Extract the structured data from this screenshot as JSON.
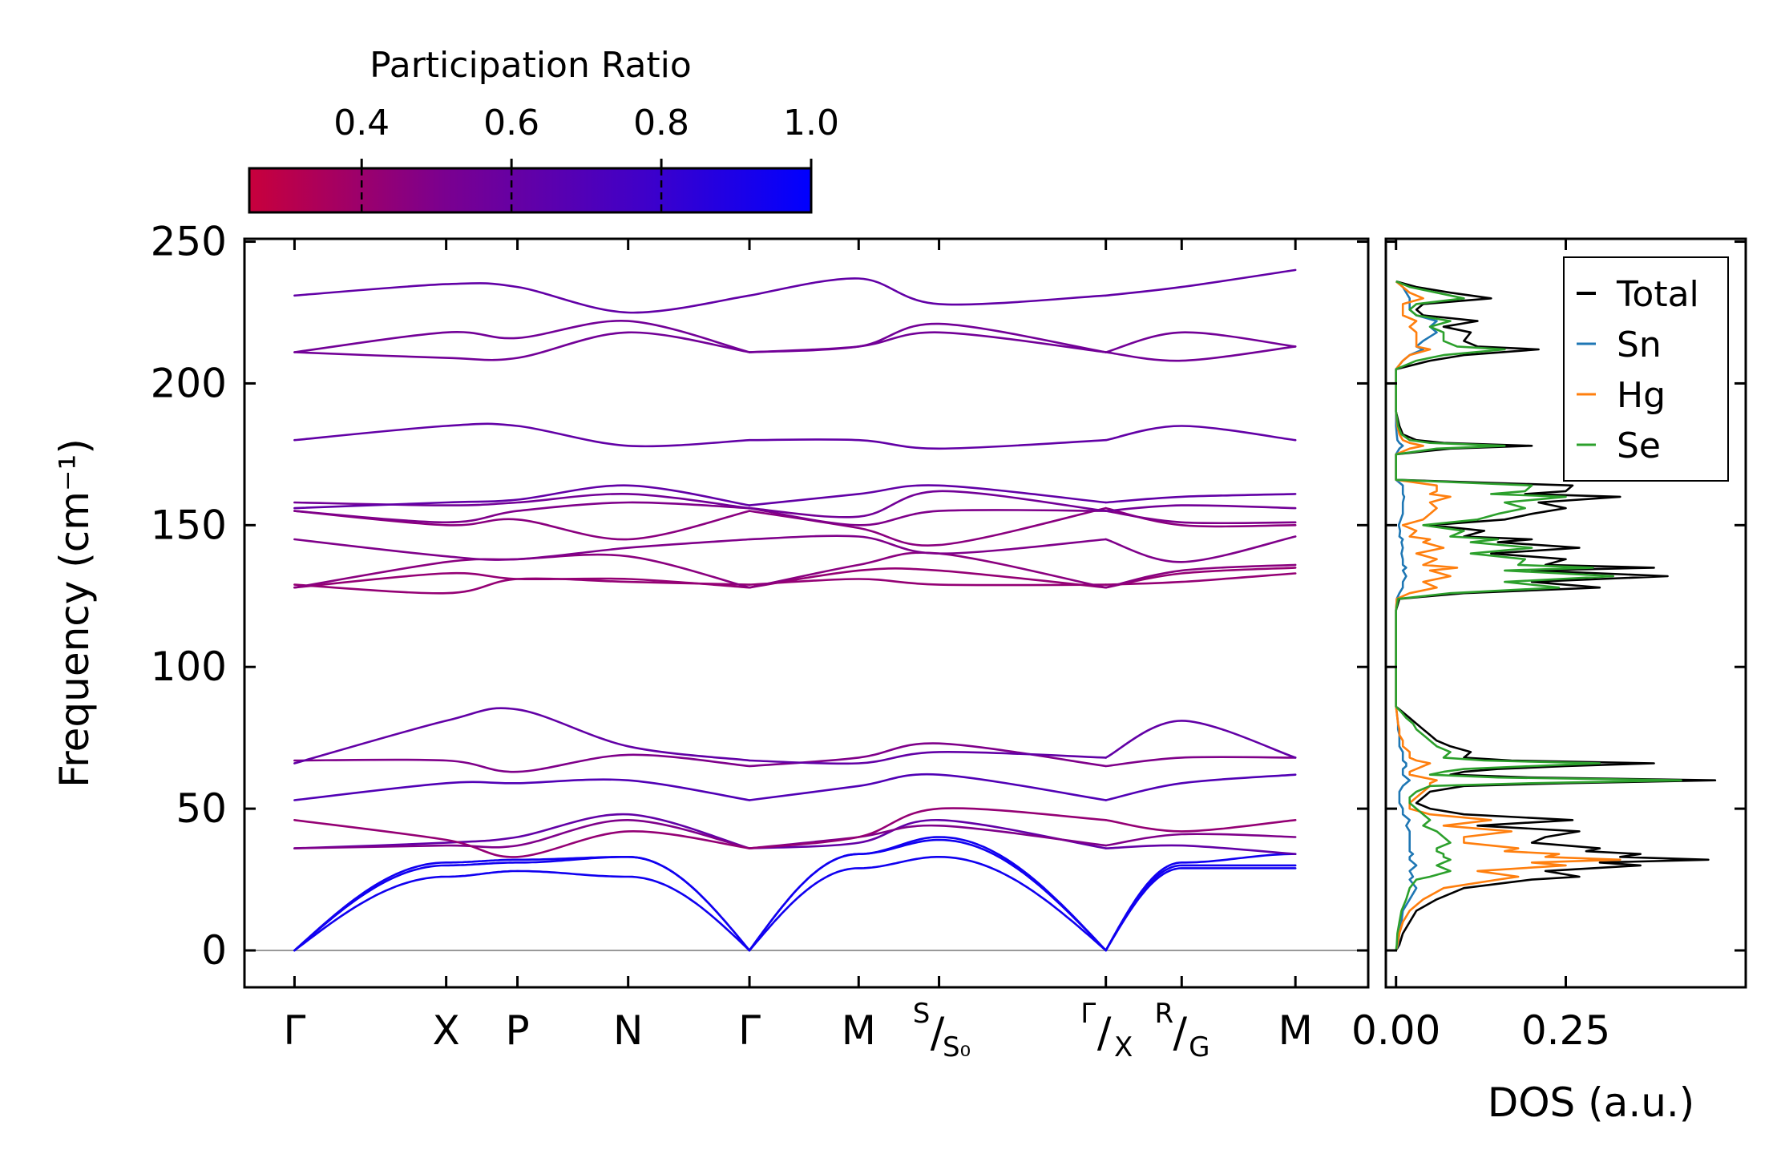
{
  "colors": {
    "cbar_low": "#c8003c",
    "cbar_mid": "#7a0090",
    "cbar_high": "#0000ff",
    "band_line": "#6b0fb0",
    "dos_total": "#000000",
    "dos_sn": "#1f77b4",
    "dos_hg": "#ff7f0e",
    "dos_se": "#2ca02c",
    "zero_line": "#999999"
  },
  "chart_data": [
    {
      "id": "band-structure",
      "type": "line",
      "title": "",
      "ylabel": "Frequency (cm⁻¹)",
      "ylim": [
        -13,
        251
      ],
      "yticks": [
        0,
        50,
        100,
        150,
        200,
        250
      ],
      "ytick_labels": [
        "0",
        "50",
        "100",
        "150",
        "200",
        "250"
      ],
      "colorbar": {
        "label": "Participation Ratio",
        "range": [
          0.25,
          1.0
        ],
        "ticks": [
          0.4,
          0.6,
          0.8,
          1.0
        ],
        "tick_labels": [
          "0.4",
          "0.6",
          "0.8",
          "1.0"
        ]
      },
      "kpath": {
        "segments": [
          [
            0,
            4
          ],
          [
            4,
            7
          ],
          [
            7,
            9
          ]
        ],
        "positions": [
          0,
          1.0,
          1.47,
          2.2,
          3.0,
          3.72,
          4.25,
          5.35,
          5.85,
          6.6
        ],
        "ticks": [
          {
            "label": "Γ",
            "pos": 0
          },
          {
            "label": "X",
            "pos": 1.0
          },
          {
            "label": "P",
            "pos": 1.47
          },
          {
            "label": "N",
            "pos": 2.2
          },
          {
            "label": "Γ",
            "pos": 3.0
          },
          {
            "label": "M",
            "pos": 3.72
          },
          {
            "label": "S",
            "label_sub": "S₀",
            "pos": 4.25
          },
          {
            "label": "Γ",
            "label_sub": "X",
            "pos": 5.35
          },
          {
            "label": "R",
            "label_sub": "G",
            "pos": 5.85
          },
          {
            "label": "M",
            "pos": 6.6
          }
        ]
      },
      "bands": [
        {
          "pr": 0.95,
          "kind": "acoustic",
          "values": [
            0,
            30,
            31,
            33,
            0,
            29,
            33,
            0,
            29,
            29
          ]
        },
        {
          "pr": 0.95,
          "kind": "acoustic",
          "values": [
            0,
            26,
            28,
            26,
            0,
            34,
            39,
            0,
            30,
            30
          ]
        },
        {
          "pr": 0.95,
          "kind": "acoustic",
          "values": [
            0,
            31,
            32,
            33,
            0,
            34,
            40,
            0,
            31,
            34
          ]
        },
        {
          "pr": 0.7,
          "values": [
            36,
            38,
            40,
            48,
            36,
            38,
            46,
            36,
            37,
            34
          ]
        },
        {
          "pr": 0.6,
          "values": [
            36,
            37,
            37,
            46,
            36,
            40,
            44,
            37,
            41,
            40
          ]
        },
        {
          "pr": 0.5,
          "values": [
            46,
            39,
            33,
            42,
            36,
            40,
            50,
            46,
            42,
            46
          ]
        },
        {
          "pr": 0.75,
          "values": [
            53,
            59,
            59,
            60,
            53,
            58,
            62,
            53,
            59,
            62
          ]
        },
        {
          "pr": 0.6,
          "values": [
            67,
            67,
            63,
            69,
            65,
            68,
            73,
            65,
            68,
            68
          ]
        },
        {
          "pr": 0.7,
          "values": [
            66,
            81,
            85,
            72,
            67,
            66,
            70,
            68,
            81,
            68
          ]
        },
        {
          "pr": 0.5,
          "values": [
            129,
            126,
            131,
            130,
            129,
            131,
            129,
            129,
            130,
            133
          ]
        },
        {
          "pr": 0.5,
          "values": [
            128,
            133,
            131,
            131,
            128,
            134,
            134,
            128,
            133,
            135
          ]
        },
        {
          "pr": 0.55,
          "values": [
            128,
            137,
            138,
            139,
            128,
            136,
            140,
            128,
            134,
            136
          ]
        },
        {
          "pr": 0.6,
          "values": [
            145,
            139,
            138,
            142,
            145,
            146,
            140,
            145,
            137,
            146
          ]
        },
        {
          "pr": 0.55,
          "values": [
            155,
            150,
            152,
            145,
            155,
            149,
            143,
            156,
            150,
            150
          ]
        },
        {
          "pr": 0.6,
          "values": [
            155,
            151,
            155,
            158,
            156,
            150,
            155,
            155,
            151,
            151
          ]
        },
        {
          "pr": 0.65,
          "values": [
            158,
            157,
            158,
            161,
            156,
            153,
            162,
            155,
            157,
            156
          ]
        },
        {
          "pr": 0.7,
          "values": [
            156,
            158,
            159,
            164,
            157,
            161,
            164,
            158,
            160,
            161
          ]
        },
        {
          "pr": 0.7,
          "values": [
            180,
            185,
            185,
            178,
            180,
            180,
            177,
            180,
            185,
            180
          ]
        },
        {
          "pr": 0.65,
          "values": [
            211,
            209,
            209,
            218,
            211,
            213,
            218,
            211,
            208,
            213
          ]
        },
        {
          "pr": 0.65,
          "values": [
            211,
            218,
            216,
            222,
            211,
            213,
            221,
            211,
            218,
            213
          ]
        },
        {
          "pr": 0.7,
          "values": [
            231,
            235,
            234,
            225,
            231,
            237,
            228,
            231,
            234,
            240
          ]
        }
      ]
    },
    {
      "id": "dos",
      "type": "line",
      "xlabel": "DOS (a.u.)",
      "xlim": [
        -0.015,
        0.515
      ],
      "xticks": [
        0.0,
        0.25
      ],
      "xtick_labels": [
        "0.00",
        "0.25"
      ],
      "ylim": [
        -13,
        251
      ],
      "legend_position": "top-right",
      "frequency": [
        0,
        2,
        6,
        10,
        14,
        18,
        22,
        25,
        26,
        28,
        30,
        31,
        32,
        33,
        34,
        35,
        36,
        38,
        40,
        42,
        44,
        46,
        48,
        50,
        52,
        54,
        56,
        58,
        59,
        60,
        61,
        62,
        63,
        64,
        65,
        66,
        67,
        68,
        70,
        72,
        74,
        76,
        78,
        80,
        82,
        84,
        86,
        90,
        100,
        110,
        120,
        124,
        126,
        128,
        130,
        132,
        134,
        135,
        136,
        138,
        140,
        142,
        144,
        145,
        146,
        148,
        150,
        152,
        154,
        156,
        158,
        160,
        161,
        162,
        164,
        166,
        170,
        175,
        177,
        178,
        179,
        180,
        182,
        185,
        190,
        200,
        205,
        208,
        210,
        212,
        213,
        215,
        218,
        220,
        222,
        224,
        226,
        228,
        230,
        232,
        234,
        236
      ],
      "series": [
        {
          "name": "Total",
          "color": "#000000",
          "values": [
            0,
            0.005,
            0.01,
            0.02,
            0.03,
            0.06,
            0.1,
            0.2,
            0.27,
            0.22,
            0.36,
            0.3,
            0.46,
            0.33,
            0.36,
            0.28,
            0.3,
            0.2,
            0.22,
            0.27,
            0.12,
            0.26,
            0.1,
            0.05,
            0.03,
            0.04,
            0.05,
            0.1,
            0.25,
            0.47,
            0.2,
            0.08,
            0.1,
            0.15,
            0.25,
            0.38,
            0.17,
            0.1,
            0.11,
            0.08,
            0.06,
            0.05,
            0.04,
            0.03,
            0.02,
            0.01,
            0.0,
            0.0,
            0.0,
            0.0,
            0.0,
            0.005,
            0.1,
            0.3,
            0.2,
            0.4,
            0.2,
            0.38,
            0.22,
            0.25,
            0.14,
            0.27,
            0.15,
            0.2,
            0.1,
            0.13,
            0.05,
            0.16,
            0.2,
            0.25,
            0.21,
            0.33,
            0.19,
            0.25,
            0.26,
            0.0,
            0.0,
            0.0,
            0.08,
            0.2,
            0.07,
            0.03,
            0.01,
            0.005,
            0.0,
            0.0,
            0.0,
            0.05,
            0.1,
            0.21,
            0.12,
            0.1,
            0.11,
            0.07,
            0.12,
            0.04,
            0.03,
            0.04,
            0.14,
            0.08,
            0.03,
            0.0
          ]
        },
        {
          "name": "Sn",
          "color": "#1f77b4",
          "values": [
            0,
            0.003,
            0.005,
            0.008,
            0.01,
            0.02,
            0.03,
            0.02,
            0.025,
            0.02,
            0.03,
            0.025,
            0.02,
            0.02,
            0.025,
            0.02,
            0.02,
            0.02,
            0.02,
            0.02,
            0.015,
            0.02,
            0.01,
            0.01,
            0.005,
            0.005,
            0.005,
            0.01,
            0.015,
            0.02,
            0.015,
            0.01,
            0.01,
            0.01,
            0.015,
            0.015,
            0.01,
            0.01,
            0.01,
            0.005,
            0.005,
            0.005,
            0.003,
            0.003,
            0.002,
            0.001,
            0.0,
            0.0,
            0.0,
            0.0,
            0.0,
            0.001,
            0.005,
            0.01,
            0.01,
            0.015,
            0.01,
            0.015,
            0.01,
            0.01,
            0.008,
            0.01,
            0.008,
            0.01,
            0.005,
            0.006,
            0.004,
            0.007,
            0.01,
            0.01,
            0.01,
            0.012,
            0.01,
            0.01,
            0.01,
            0.0,
            0.0,
            0.0,
            0.005,
            0.01,
            0.005,
            0.002,
            0.001,
            0.0,
            0.0,
            0.0,
            0.0,
            0.01,
            0.02,
            0.04,
            0.03,
            0.04,
            0.06,
            0.05,
            0.06,
            0.03,
            0.02,
            0.02,
            0.02,
            0.015,
            0.01,
            0.0
          ]
        },
        {
          "name": "Hg",
          "color": "#ff7f0e",
          "values": [
            0,
            0.002,
            0.005,
            0.01,
            0.02,
            0.04,
            0.07,
            0.15,
            0.18,
            0.12,
            0.25,
            0.2,
            0.33,
            0.22,
            0.24,
            0.16,
            0.18,
            0.1,
            0.1,
            0.17,
            0.07,
            0.14,
            0.05,
            0.02,
            0.02,
            0.03,
            0.04,
            0.05,
            0.05,
            0.06,
            0.04,
            0.02,
            0.02,
            0.03,
            0.04,
            0.05,
            0.03,
            0.02,
            0.02,
            0.01,
            0.01,
            0.005,
            0.005,
            0.003,
            0.002,
            0.001,
            0.0,
            0.0,
            0.0,
            0.0,
            0.0,
            0.001,
            0.02,
            0.06,
            0.04,
            0.08,
            0.05,
            0.09,
            0.04,
            0.06,
            0.03,
            0.07,
            0.04,
            0.05,
            0.02,
            0.03,
            0.01,
            0.04,
            0.05,
            0.06,
            0.05,
            0.08,
            0.05,
            0.06,
            0.06,
            0.0,
            0.0,
            0.0,
            0.02,
            0.04,
            0.02,
            0.01,
            0.005,
            0.002,
            0.0,
            0.0,
            0.0,
            0.01,
            0.02,
            0.05,
            0.03,
            0.03,
            0.03,
            0.02,
            0.03,
            0.01,
            0.01,
            0.01,
            0.04,
            0.02,
            0.01,
            0.0
          ]
        },
        {
          "name": "Se",
          "color": "#2ca02c",
          "values": [
            0,
            0.001,
            0.002,
            0.005,
            0.008,
            0.015,
            0.02,
            0.03,
            0.05,
            0.08,
            0.06,
            0.07,
            0.08,
            0.07,
            0.07,
            0.06,
            0.06,
            0.08,
            0.07,
            0.06,
            0.04,
            0.05,
            0.04,
            0.03,
            0.02,
            0.02,
            0.03,
            0.05,
            0.2,
            0.42,
            0.15,
            0.05,
            0.07,
            0.1,
            0.2,
            0.3,
            0.13,
            0.07,
            0.08,
            0.06,
            0.05,
            0.04,
            0.03,
            0.025,
            0.015,
            0.008,
            0.0,
            0.0,
            0.0,
            0.0,
            0.0,
            0.003,
            0.08,
            0.24,
            0.16,
            0.32,
            0.16,
            0.29,
            0.18,
            0.19,
            0.11,
            0.2,
            0.11,
            0.15,
            0.08,
            0.1,
            0.04,
            0.12,
            0.15,
            0.19,
            0.16,
            0.25,
            0.14,
            0.19,
            0.2,
            0.0,
            0.0,
            0.0,
            0.06,
            0.16,
            0.05,
            0.02,
            0.008,
            0.003,
            0.0,
            0.0,
            0.0,
            0.03,
            0.07,
            0.16,
            0.09,
            0.07,
            0.07,
            0.05,
            0.08,
            0.03,
            0.02,
            0.03,
            0.1,
            0.06,
            0.02,
            0.0
          ]
        }
      ]
    }
  ]
}
